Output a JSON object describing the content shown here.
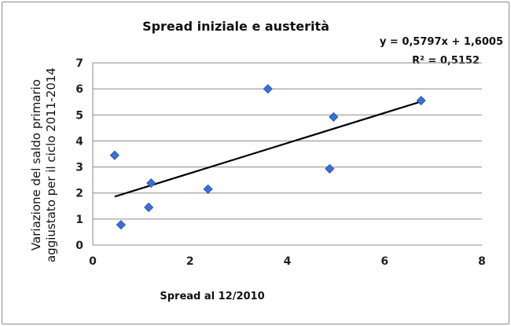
{
  "chart_data": {
    "type": "scatter",
    "title": "Spread iniziale e austerità",
    "xlabel": "Spread al 12/2010",
    "ylabel_lines": [
      "Variazione del saldo primario",
      "aggiustato per il ciclo 2011-2014"
    ],
    "xlim": [
      0,
      8
    ],
    "ylim": [
      0,
      7
    ],
    "xticks": [
      0,
      2,
      4,
      6,
      8
    ],
    "yticks": [
      0,
      1,
      2,
      3,
      4,
      5,
      6,
      7
    ],
    "grid": "horizontal",
    "marker_color": "#3a6fd8",
    "trend_color": "#000000",
    "trendline": {
      "slope": 0.5797,
      "intercept": 1.6005,
      "equation": "y = 0,5797x + 1,6005",
      "r2": "R² = 0,5152"
    },
    "points": [
      {
        "x": 0.45,
        "y": 3.45
      },
      {
        "x": 0.58,
        "y": 0.78
      },
      {
        "x": 1.15,
        "y": 1.45
      },
      {
        "x": 1.2,
        "y": 2.38
      },
      {
        "x": 2.37,
        "y": 2.15
      },
      {
        "x": 3.6,
        "y": 6.0
      },
      {
        "x": 4.87,
        "y": 2.93
      },
      {
        "x": 4.95,
        "y": 4.92
      },
      {
        "x": 6.75,
        "y": 5.55
      }
    ]
  }
}
